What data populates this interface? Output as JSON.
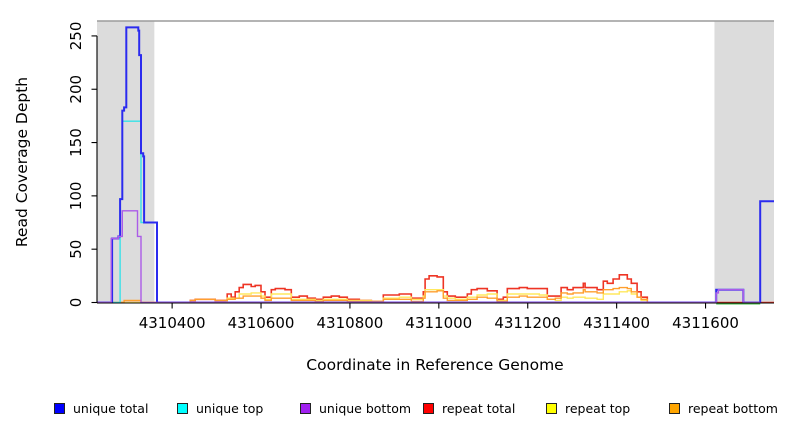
{
  "chart_data": {
    "type": "line",
    "step": true,
    "title": "",
    "xlabel": "Coordinate in Reference Genome",
    "ylabel": "Read Coverage Depth",
    "xlim": [
      4310231,
      4311754
    ],
    "ylim": [
      0,
      264
    ],
    "xticks": [
      4310400,
      4310600,
      4310800,
      4311000,
      4311200,
      4311400,
      4311600
    ],
    "yticks": [
      0,
      50,
      100,
      150,
      200,
      250
    ],
    "grid": false,
    "legend_position": "bottom",
    "shade_color": "#dcdcdc",
    "shaded_regions": [
      {
        "x0": 4310231,
        "x1": 4310360
      },
      {
        "x0": 4311620,
        "x1": 4311754
      }
    ],
    "series": [
      {
        "name": "unique-total",
        "label": "unique total",
        "legend_color": "#0000ff",
        "line_color": "#2b2bef",
        "line_width": 2,
        "z": 4,
        "points": [
          [
            4310231,
            0
          ],
          [
            4310265,
            60
          ],
          [
            4310279,
            62
          ],
          [
            4310283,
            97
          ],
          [
            4310288,
            180
          ],
          [
            4310292,
            183
          ],
          [
            4310297,
            258
          ],
          [
            4310324,
            255
          ],
          [
            4310326,
            232
          ],
          [
            4310330,
            140
          ],
          [
            4310335,
            137
          ],
          [
            4310337,
            75
          ],
          [
            4310366,
            0
          ],
          [
            4311624,
            12
          ],
          [
            4311685,
            0
          ],
          [
            4311723,
            95
          ],
          [
            4311754,
            95
          ]
        ]
      },
      {
        "name": "unique-top",
        "label": "unique top",
        "legend_color": "#00ffff",
        "line_color": "#36e2e8",
        "line_width": 1.4,
        "z": 3,
        "points": [
          [
            4310231,
            0
          ],
          [
            4310283,
            97
          ],
          [
            4310288,
            170
          ],
          [
            4310330,
            75
          ],
          [
            4310366,
            0
          ],
          [
            4311624,
            0
          ]
        ]
      },
      {
        "name": "unique-bottom",
        "label": "unique bottom",
        "legend_color": "#a020f0",
        "line_color": "#ab5ce8",
        "line_width": 1.4,
        "z": 5,
        "points": [
          [
            4310231,
            0
          ],
          [
            4310263,
            60
          ],
          [
            4310279,
            62
          ],
          [
            4310288,
            86
          ],
          [
            4310322,
            62
          ],
          [
            4310330,
            0
          ],
          [
            4311624,
            9
          ],
          [
            4311629,
            12
          ],
          [
            4311685,
            0
          ],
          [
            4311723,
            0
          ]
        ]
      },
      {
        "name": "repeat-total",
        "label": "repeat total",
        "legend_color": "#ff0000",
        "line_color": "#ee3424",
        "line_width": 1.6,
        "z": 0,
        "points": [
          [
            4310231,
            0
          ],
          [
            4310441,
            2
          ],
          [
            4310452,
            3
          ],
          [
            4310497,
            2
          ],
          [
            4310524,
            8
          ],
          [
            4310533,
            5
          ],
          [
            4310542,
            10
          ],
          [
            4310551,
            14
          ],
          [
            4310560,
            17
          ],
          [
            4310578,
            15
          ],
          [
            4310587,
            16
          ],
          [
            4310600,
            10
          ],
          [
            4310609,
            5
          ],
          [
            4310623,
            12
          ],
          [
            4310632,
            13
          ],
          [
            4310654,
            12
          ],
          [
            4310668,
            5
          ],
          [
            4310686,
            6
          ],
          [
            4310704,
            4
          ],
          [
            4310722,
            3
          ],
          [
            4310740,
            5
          ],
          [
            4310758,
            6
          ],
          [
            4310776,
            5
          ],
          [
            4310794,
            3
          ],
          [
            4310821,
            2
          ],
          [
            4310848,
            1
          ],
          [
            4310875,
            7
          ],
          [
            4310911,
            8
          ],
          [
            4310938,
            4
          ],
          [
            4310965,
            10
          ],
          [
            4310969,
            22
          ],
          [
            4310978,
            25
          ],
          [
            4310996,
            24
          ],
          [
            4311010,
            10
          ],
          [
            4311019,
            6
          ],
          [
            4311037,
            5
          ],
          [
            4311064,
            8
          ],
          [
            4311073,
            12
          ],
          [
            4311086,
            13
          ],
          [
            4311109,
            11
          ],
          [
            4311131,
            3
          ],
          [
            4311145,
            5
          ],
          [
            4311154,
            13
          ],
          [
            4311181,
            14
          ],
          [
            4311199,
            13
          ],
          [
            4311244,
            6
          ],
          [
            4311275,
            14
          ],
          [
            4311289,
            12
          ],
          [
            4311302,
            14
          ],
          [
            4311325,
            18
          ],
          [
            4311329,
            14
          ],
          [
            4311356,
            12
          ],
          [
            4311370,
            20
          ],
          [
            4311379,
            18
          ],
          [
            4311392,
            22
          ],
          [
            4311406,
            26
          ],
          [
            4311424,
            22
          ],
          [
            4311433,
            18
          ],
          [
            4311446,
            10
          ],
          [
            4311455,
            5
          ],
          [
            4311469,
            0
          ],
          [
            4311754,
            0
          ]
        ]
      },
      {
        "name": "repeat-top",
        "label": "repeat top",
        "legend_color": "#ffff00",
        "line_color": "#ffe85e",
        "line_width": 1.4,
        "z": 1,
        "points": [
          [
            4310231,
            0
          ],
          [
            4310524,
            4
          ],
          [
            4310551,
            8
          ],
          [
            4310578,
            9
          ],
          [
            4310600,
            6
          ],
          [
            4310609,
            3
          ],
          [
            4310623,
            8
          ],
          [
            4310668,
            3
          ],
          [
            4310722,
            2
          ],
          [
            4310740,
            3
          ],
          [
            4310794,
            2
          ],
          [
            4310848,
            1
          ],
          [
            4310875,
            4
          ],
          [
            4310911,
            5
          ],
          [
            4310938,
            3
          ],
          [
            4310965,
            6
          ],
          [
            4310969,
            12
          ],
          [
            4311010,
            6
          ],
          [
            4311019,
            4
          ],
          [
            4311037,
            3
          ],
          [
            4311064,
            5
          ],
          [
            4311086,
            7
          ],
          [
            4311109,
            8
          ],
          [
            4311131,
            2
          ],
          [
            4311154,
            8
          ],
          [
            4311226,
            7
          ],
          [
            4311244,
            3
          ],
          [
            4311262,
            2
          ],
          [
            4311275,
            5
          ],
          [
            4311289,
            4
          ],
          [
            4311302,
            5
          ],
          [
            4311329,
            4
          ],
          [
            4311356,
            3
          ],
          [
            4311370,
            8
          ],
          [
            4311406,
            10
          ],
          [
            4311424,
            11
          ],
          [
            4311433,
            8
          ],
          [
            4311446,
            5
          ],
          [
            4311455,
            2
          ],
          [
            4311469,
            0
          ]
        ]
      },
      {
        "name": "repeat-bottom",
        "label": "repeat bottom",
        "legend_color": "#ffa500",
        "line_color": "#ff9f2e",
        "line_width": 1.4,
        "z": 2,
        "points": [
          [
            4310231,
            0
          ],
          [
            4310292,
            2
          ],
          [
            4310330,
            0
          ],
          [
            4310441,
            2
          ],
          [
            4310452,
            3
          ],
          [
            4310497,
            2
          ],
          [
            4310524,
            3
          ],
          [
            4310542,
            4
          ],
          [
            4310560,
            6
          ],
          [
            4310600,
            4
          ],
          [
            4310609,
            2
          ],
          [
            4310623,
            4
          ],
          [
            4310668,
            2
          ],
          [
            4310722,
            1
          ],
          [
            4310740,
            2
          ],
          [
            4310794,
            1
          ],
          [
            4310875,
            3
          ],
          [
            4310938,
            1
          ],
          [
            4310965,
            4
          ],
          [
            4310969,
            10
          ],
          [
            4310996,
            11
          ],
          [
            4311010,
            4
          ],
          [
            4311019,
            2
          ],
          [
            4311064,
            3
          ],
          [
            4311086,
            5
          ],
          [
            4311109,
            4
          ],
          [
            4311131,
            1
          ],
          [
            4311154,
            5
          ],
          [
            4311181,
            6
          ],
          [
            4311199,
            5
          ],
          [
            4311244,
            3
          ],
          [
            4311262,
            4
          ],
          [
            4311275,
            9
          ],
          [
            4311289,
            8
          ],
          [
            4311302,
            9
          ],
          [
            4311325,
            12
          ],
          [
            4311329,
            10
          ],
          [
            4311356,
            9
          ],
          [
            4311370,
            12
          ],
          [
            4311392,
            13
          ],
          [
            4311406,
            14
          ],
          [
            4311424,
            13
          ],
          [
            4311433,
            10
          ],
          [
            4311446,
            5
          ],
          [
            4311455,
            3
          ],
          [
            4311469,
            0
          ]
        ]
      }
    ],
    "annotations": [
      {
        "name": "baseline-green-segment",
        "color": "#44bb44",
        "y": 0,
        "x0": 4311624,
        "x1": 4311723
      }
    ]
  }
}
